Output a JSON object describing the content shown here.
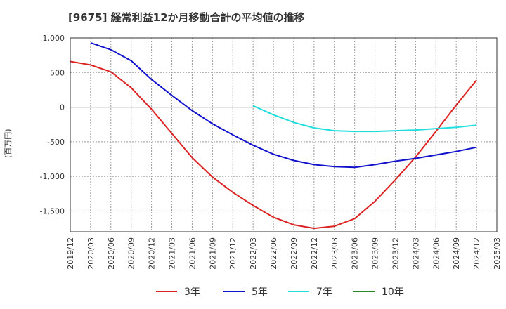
{
  "chart_data": {
    "type": "line",
    "title": "[9675]  経常利益12か月移動合計の平均値の推移",
    "xlabel": "",
    "ylabel": "(百万円)",
    "x_ticks": [
      "2019/12",
      "2020/03",
      "2020/06",
      "2020/09",
      "2020/12",
      "2021/03",
      "2021/06",
      "2021/09",
      "2021/12",
      "2022/03",
      "2022/06",
      "2022/09",
      "2022/12",
      "2023/03",
      "2023/06",
      "2023/09",
      "2023/12",
      "2024/03",
      "2024/06",
      "2024/09",
      "2024/12",
      "2025/03"
    ],
    "y_ticks": [
      1000,
      500,
      0,
      -500,
      -1000,
      -1500
    ],
    "y_tick_labels": [
      "1,000",
      "500",
      "0",
      "-500",
      "-1,000",
      "-1,500"
    ],
    "ylim": [
      -1800,
      1000
    ],
    "grid": true,
    "legend_position": "bottom",
    "series": [
      {
        "name": "3年",
        "color": "#dd2222",
        "x": [
          "2019/12",
          "2020/03",
          "2020/06",
          "2020/09",
          "2020/12",
          "2021/03",
          "2021/06",
          "2021/09",
          "2021/12",
          "2022/03",
          "2022/06",
          "2022/09",
          "2022/12",
          "2023/03",
          "2023/06",
          "2023/09",
          "2023/12",
          "2024/03",
          "2024/06",
          "2024/09",
          "2024/12"
        ],
        "values": [
          660,
          610,
          510,
          280,
          -30,
          -380,
          -730,
          -1010,
          -1230,
          -1420,
          -1590,
          -1700,
          -1750,
          -1720,
          -1610,
          -1360,
          -1050,
          -720,
          -350,
          30,
          390
        ]
      },
      {
        "name": "5年",
        "color": "#1111cc",
        "x": [
          "2020/03",
          "2020/06",
          "2020/09",
          "2020/12",
          "2021/03",
          "2021/06",
          "2021/09",
          "2021/12",
          "2022/03",
          "2022/06",
          "2022/09",
          "2022/12",
          "2023/03",
          "2023/06",
          "2023/09",
          "2023/12",
          "2024/03",
          "2024/06",
          "2024/09",
          "2024/12"
        ],
        "values": [
          930,
          830,
          670,
          400,
          170,
          -50,
          -240,
          -400,
          -550,
          -680,
          -770,
          -830,
          -860,
          -870,
          -830,
          -780,
          -740,
          -690,
          -640,
          -580
        ]
      },
      {
        "name": "7年",
        "color": "#22dddd",
        "x": [
          "2022/03",
          "2022/06",
          "2022/09",
          "2022/12",
          "2023/03",
          "2023/06",
          "2023/09",
          "2023/12",
          "2024/03",
          "2024/06",
          "2024/09",
          "2024/12"
        ],
        "values": [
          20,
          -110,
          -220,
          -300,
          -340,
          -350,
          -350,
          -340,
          -330,
          -310,
          -290,
          -260
        ]
      },
      {
        "name": "10年",
        "color": "#228822",
        "x": [],
        "values": []
      }
    ]
  }
}
